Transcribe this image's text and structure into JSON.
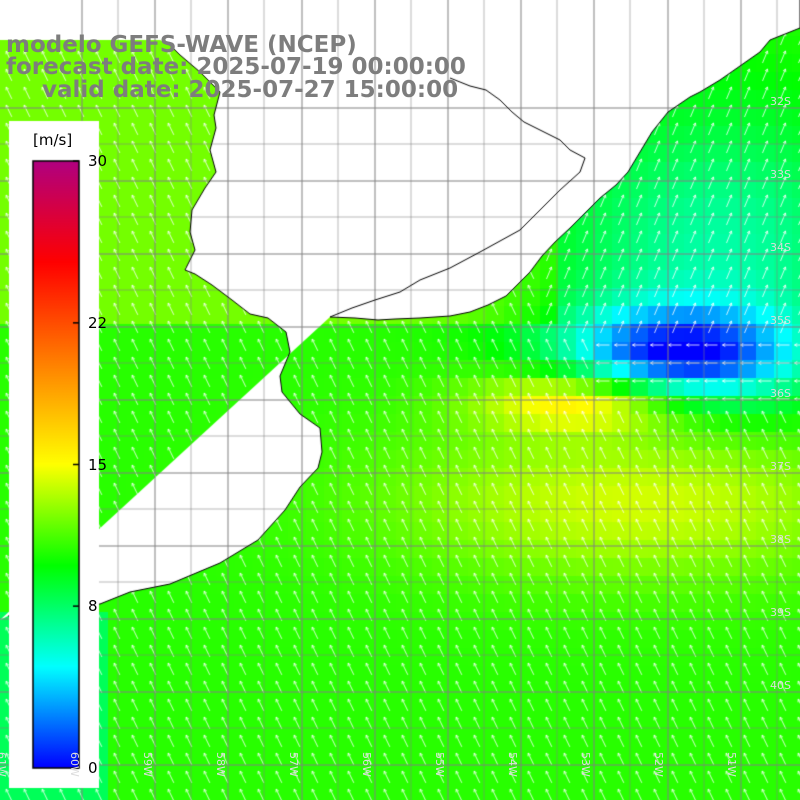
{
  "header": {
    "line1": "modelo GEFS-WAVE (NCEP)",
    "line2": "forecast date: 2025-07-19 00:00:00",
    "line3": "valid date: 2025-07-27 15:00:00"
  },
  "colorbar": {
    "units": "[m/s]",
    "ticks": [
      {
        "value": 30,
        "label": "30"
      },
      {
        "value": 22,
        "label": "22"
      },
      {
        "value": 15,
        "label": "15"
      },
      {
        "value": 8,
        "label": "8"
      },
      {
        "value": 0,
        "label": "0"
      }
    ],
    "min": 0,
    "max": 30,
    "colors": [
      "#0000ff",
      "#00ffff",
      "#00ff00",
      "#ffff00",
      "#ff8000",
      "#ff0000",
      "#b00080"
    ]
  },
  "map": {
    "variable": "wind speed",
    "lat_labels": [
      "32S",
      "33S",
      "34S",
      "35S",
      "36S",
      "37S",
      "38S",
      "39S",
      "40S"
    ],
    "lon_labels": [
      "61W",
      "60W",
      "59W",
      "58W",
      "57W",
      "56W",
      "55W",
      "54W",
      "53W",
      "52W",
      "51W"
    ],
    "land_color": "#ffffff",
    "grid_color": "#808080",
    "arrow_color": "#ffffff"
  }
}
